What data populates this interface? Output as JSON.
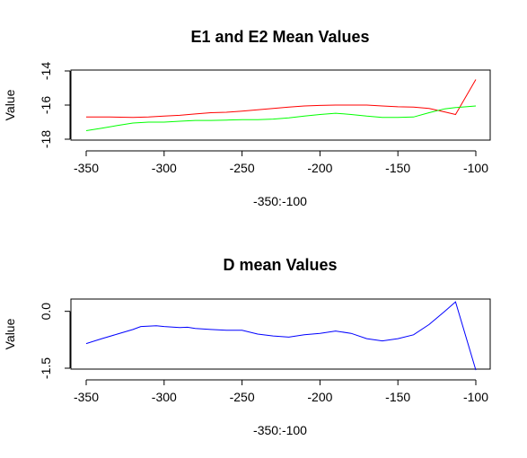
{
  "chart_data": [
    {
      "type": "line",
      "title": "E1 and E2 Mean Values",
      "xlabel": "-350:-100",
      "ylabel": "Value",
      "xlim": [
        -350,
        -100
      ],
      "ylim": [
        -18,
        -14
      ],
      "xticks": [
        -350,
        -300,
        -250,
        -200,
        -150,
        -100
      ],
      "yticks": [
        -18,
        -16,
        -14
      ],
      "series": [
        {
          "color": "#ff0000",
          "x": [
            -350,
            -335,
            -320,
            -310,
            -300,
            -290,
            -280,
            -270,
            -260,
            -250,
            -240,
            -230,
            -220,
            -210,
            -200,
            -190,
            -180,
            -170,
            -160,
            -150,
            -140,
            -130,
            -120,
            -113,
            -100
          ],
          "y": [
            -16.7,
            -16.7,
            -16.72,
            -16.7,
            -16.65,
            -16.6,
            -16.52,
            -16.45,
            -16.42,
            -16.35,
            -16.28,
            -16.2,
            -16.12,
            -16.05,
            -16.02,
            -16.0,
            -16.0,
            -16.0,
            -16.05,
            -16.1,
            -16.12,
            -16.2,
            -16.4,
            -16.55,
            -14.5
          ]
        },
        {
          "color": "#00ff00",
          "x": [
            -350,
            -340,
            -330,
            -320,
            -310,
            -300,
            -290,
            -280,
            -270,
            -260,
            -250,
            -240,
            -230,
            -220,
            -210,
            -200,
            -190,
            -180,
            -170,
            -160,
            -150,
            -140,
            -130,
            -120,
            -113,
            -100
          ],
          "y": [
            -17.5,
            -17.35,
            -17.2,
            -17.05,
            -17.0,
            -17.0,
            -16.95,
            -16.9,
            -16.9,
            -16.88,
            -16.85,
            -16.85,
            -16.82,
            -16.75,
            -16.65,
            -16.55,
            -16.48,
            -16.55,
            -16.65,
            -16.72,
            -16.72,
            -16.7,
            -16.45,
            -16.22,
            -16.15,
            -16.05
          ]
        }
      ]
    },
    {
      "type": "line",
      "title": "D mean Values",
      "xlabel": "-350:-100",
      "ylabel": "Value",
      "xlim": [
        -350,
        -100
      ],
      "ylim": [
        -1.5,
        0.3
      ],
      "xticks": [
        -350,
        -300,
        -250,
        -200,
        -150,
        -100
      ],
      "yticks": [
        -1.5,
        0.0
      ],
      "ytick_labels": [
        "-1.5",
        "0.0"
      ],
      "series": [
        {
          "color": "#0000ff",
          "x": [
            -350,
            -340,
            -330,
            -320,
            -315,
            -305,
            -300,
            -290,
            -285,
            -280,
            -270,
            -260,
            -250,
            -240,
            -230,
            -220,
            -210,
            -200,
            -190,
            -180,
            -170,
            -160,
            -150,
            -140,
            -130,
            -120,
            -113,
            -100
          ],
          "y": [
            -0.85,
            -0.72,
            -0.6,
            -0.48,
            -0.4,
            -0.38,
            -0.4,
            -0.43,
            -0.42,
            -0.45,
            -0.48,
            -0.5,
            -0.5,
            -0.6,
            -0.65,
            -0.68,
            -0.62,
            -0.58,
            -0.52,
            -0.58,
            -0.72,
            -0.78,
            -0.72,
            -0.62,
            -0.35,
            0.0,
            0.25,
            -1.55
          ]
        }
      ]
    }
  ]
}
